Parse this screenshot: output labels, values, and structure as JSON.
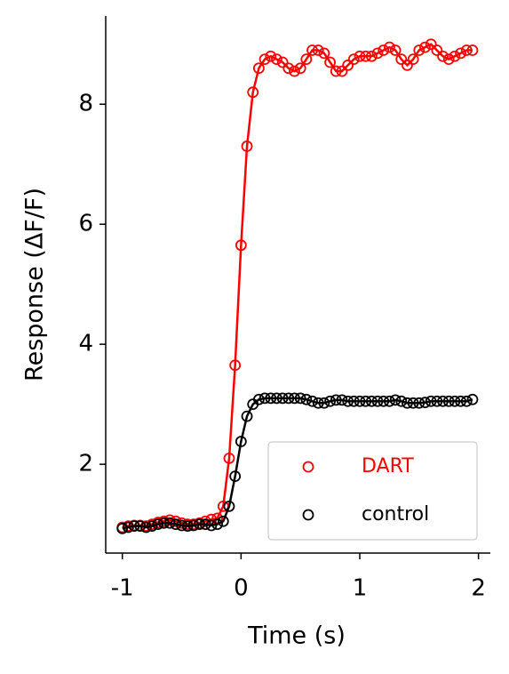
{
  "chart_data": {
    "type": "line",
    "xlabel": "Time (s)",
    "ylabel": "Response (ΔF/F)",
    "x": [
      -1,
      -0.95,
      -0.9,
      -0.85,
      -0.8,
      -0.75,
      -0.7,
      -0.65,
      -0.6,
      -0.55,
      -0.5,
      -0.45,
      -0.4,
      -0.35,
      -0.3,
      -0.25,
      -0.2,
      -0.15,
      -0.1,
      -0.05,
      0,
      0.05,
      0.1,
      0.15,
      0.2,
      0.25,
      0.3,
      0.35,
      0.4,
      0.45,
      0.5,
      0.55,
      0.6,
      0.65,
      0.7,
      0.75,
      0.8,
      0.85,
      0.9,
      0.95,
      1,
      1.05,
      1.1,
      1.15,
      1.2,
      1.25,
      1.3,
      1.35,
      1.4,
      1.45,
      1.5,
      1.55,
      1.6,
      1.65,
      1.7,
      1.75,
      1.8,
      1.85,
      1.9,
      1.95
    ],
    "series": [
      {
        "name": "DART",
        "color": "#ff0000",
        "values": [
          0.95,
          0.97,
          0.98,
          0.98,
          0.97,
          1.0,
          1.03,
          1.05,
          1.07,
          1.05,
          1.02,
          1.0,
          1.0,
          1.02,
          1.05,
          1.08,
          1.1,
          1.3,
          2.1,
          3.65,
          5.65,
          7.3,
          8.2,
          8.6,
          8.75,
          8.8,
          8.75,
          8.7,
          8.6,
          8.55,
          8.6,
          8.75,
          8.9,
          8.9,
          8.85,
          8.7,
          8.55,
          8.55,
          8.65,
          8.75,
          8.8,
          8.8,
          8.8,
          8.85,
          8.9,
          8.95,
          8.9,
          8.75,
          8.65,
          8.75,
          8.9,
          8.95,
          9.0,
          8.9,
          8.8,
          8.75,
          8.8,
          8.85,
          8.9,
          8.9
        ]
      },
      {
        "name": "control",
        "color": "#000000",
        "values": [
          0.93,
          0.95,
          0.97,
          0.97,
          0.95,
          0.97,
          1.0,
          1.02,
          1.02,
          1.0,
          0.98,
          0.97,
          0.98,
          1.0,
          1.0,
          0.98,
          1.0,
          1.05,
          1.3,
          1.8,
          2.38,
          2.8,
          3.0,
          3.08,
          3.1,
          3.1,
          3.1,
          3.1,
          3.1,
          3.1,
          3.1,
          3.08,
          3.05,
          3.02,
          3.02,
          3.05,
          3.07,
          3.07,
          3.05,
          3.05,
          3.05,
          3.05,
          3.05,
          3.05,
          3.05,
          3.05,
          3.07,
          3.05,
          3.02,
          3.02,
          3.02,
          3.03,
          3.05,
          3.05,
          3.05,
          3.05,
          3.05,
          3.05,
          3.05,
          3.08
        ]
      }
    ],
    "xlim": [
      -1.14,
      2.1
    ],
    "ylim": [
      0.52,
      9.47
    ],
    "xticks": [
      -1,
      0,
      1,
      2
    ],
    "yticks": [
      2,
      4,
      6,
      8
    ],
    "grid": false,
    "legend": "lower right"
  }
}
